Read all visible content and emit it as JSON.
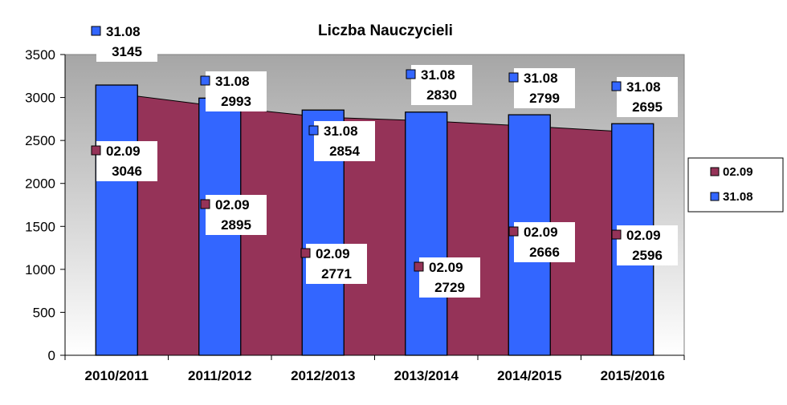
{
  "chart_data": {
    "type": "bar",
    "title": "Liczba Nauczycieli",
    "categories": [
      "2010/2011",
      "2011/2012",
      "2012/2013",
      "2013/2014",
      "2014/2015",
      "2015/2016"
    ],
    "series": [
      {
        "name": "02.09",
        "chart_type": "area",
        "color": "#953358",
        "values": [
          3046,
          2895,
          2771,
          2729,
          2666,
          2596
        ]
      },
      {
        "name": "31.08",
        "chart_type": "bar",
        "color": "#3366ff",
        "values": [
          3145,
          2993,
          2854,
          2830,
          2799,
          2695
        ]
      }
    ],
    "ylim": [
      0,
      3500
    ],
    "yticks": [
      0,
      500,
      1000,
      1500,
      2000,
      2500,
      3000,
      3500
    ],
    "grid": false,
    "legend": {
      "position": "right",
      "order": [
        "02.09",
        "31.08"
      ]
    },
    "colors": {
      "plot_background_top": "#a6a6a6",
      "plot_background_bottom": "#ffffff"
    }
  }
}
